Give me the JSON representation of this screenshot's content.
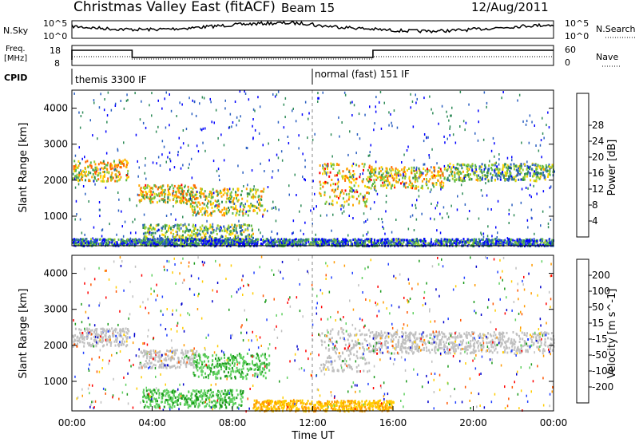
{
  "header": {
    "title": "Christmas Valley East (fitACF)",
    "beam": "Beam 15",
    "date": "12/Aug/2011"
  },
  "status_panel": {
    "nsky_label": "N.Sky",
    "nsearch_label": "N.Search",
    "nsky_tick_top": "10^5",
    "nsky_tick_bottom": "10^0",
    "freq_label_1": "Freq.",
    "freq_label_2": "[MHz]",
    "freq_ticks": [
      "8",
      "18"
    ],
    "nave_ticks": [
      "0",
      "60"
    ],
    "nave_label": "Nave",
    "cpid_label": "CPID",
    "cpid_segments": [
      {
        "label": "themis 3300 IF",
        "start_hour": 0
      },
      {
        "label": "normal (fast) 151 IF",
        "start_hour": 12
      }
    ]
  },
  "chart_data": [
    {
      "type": "heatmap",
      "quantity": "power",
      "ylabel": "Slant Range [km]",
      "xlabel": "",
      "xlim": [
        0,
        24
      ],
      "ylim": [
        180,
        4500
      ],
      "yticks": [
        "1000",
        "2000",
        "3000",
        "4000"
      ],
      "colorbar": {
        "label": "Power [dB]",
        "ticks": [
          "4",
          "8",
          "12",
          "16",
          "20",
          "24",
          "28"
        ],
        "colors": [
          "#0000ff",
          "#2a5fc0",
          "#2e8b57",
          "#5ab84a",
          "#9acd32",
          "#ffd700",
          "#ffa500",
          "#ff6a00",
          "#ff0000"
        ]
      },
      "echo_regions": [
        {
          "start_hour": 0.0,
          "end_hour": 2.8,
          "range_km": [
            2000,
            2600
          ],
          "level": 0.6
        },
        {
          "start_hour": 3.3,
          "end_hour": 6.2,
          "range_km": [
            1400,
            1900
          ],
          "level": 0.6
        },
        {
          "start_hour": 5.8,
          "end_hour": 9.6,
          "range_km": [
            1050,
            1800
          ],
          "level": 0.55
        },
        {
          "start_hour": 3.5,
          "end_hour": 9.0,
          "range_km": [
            250,
            800
          ],
          "level": 0.4
        },
        {
          "start_hour": 12.3,
          "end_hour": 14.8,
          "range_km": [
            1300,
            2500
          ],
          "level": 0.65
        },
        {
          "start_hour": 14.8,
          "end_hour": 18.5,
          "range_km": [
            1800,
            2400
          ],
          "level": 0.6
        },
        {
          "start_hour": 18.5,
          "end_hour": 24.0,
          "range_km": [
            2000,
            2500
          ],
          "level": 0.4
        },
        {
          "start_hour": 0.0,
          "end_hour": 24.0,
          "range_km": [
            200,
            400
          ],
          "level": 0.2
        }
      ]
    },
    {
      "type": "heatmap",
      "quantity": "velocity",
      "ylabel": "Slant Range [km]",
      "xlabel": "Time UT",
      "xlim": [
        0,
        24
      ],
      "ylim": [
        180,
        4500
      ],
      "xticks": [
        "00:00",
        "04:00",
        "08:00",
        "12:00",
        "16:00",
        "20:00",
        "00:00"
      ],
      "yticks": [
        "1000",
        "2000",
        "3000",
        "4000"
      ],
      "colorbar": {
        "label": "Velocity [m s^-1]",
        "ticks": [
          "200",
          "100",
          "50",
          "15",
          "-15",
          "-50",
          "-100",
          "-200"
        ],
        "colors": [
          "#0000cc",
          "#2040ff",
          "#1a9a1a",
          "#5fd05f",
          "#c0c0c0",
          "#ffcc00",
          "#ff9900",
          "#ff5500",
          "#ff0000"
        ]
      },
      "echo_regions": [
        {
          "start_hour": 0.0,
          "end_hour": 2.8,
          "range_km": [
            2000,
            2500
          ],
          "class": "ground"
        },
        {
          "start_hour": 3.3,
          "end_hour": 6.2,
          "range_km": [
            1400,
            1900
          ],
          "class": "ground"
        },
        {
          "start_hour": 6.0,
          "end_hour": 9.8,
          "range_km": [
            1100,
            1800
          ],
          "class": "positive"
        },
        {
          "start_hour": 3.5,
          "end_hour": 8.5,
          "range_km": [
            300,
            800
          ],
          "class": "positive"
        },
        {
          "start_hour": 12.3,
          "end_hour": 14.8,
          "range_km": [
            1300,
            2500
          ],
          "class": "ground"
        },
        {
          "start_hour": 14.8,
          "end_hour": 24.0,
          "range_km": [
            1800,
            2400
          ],
          "class": "ground"
        },
        {
          "start_hour": 9.0,
          "end_hour": 16.0,
          "range_km": [
            200,
            500
          ],
          "class": "negative"
        }
      ]
    }
  ]
}
